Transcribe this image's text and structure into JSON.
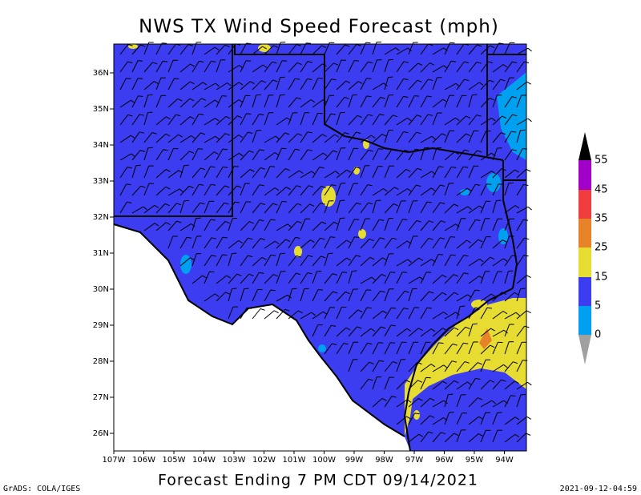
{
  "header": {
    "title": "NWS TX Wind Speed Forecast (mph)"
  },
  "map": {
    "lat_labels": [
      "26N",
      "27N",
      "28N",
      "29N",
      "30N",
      "31N",
      "32N",
      "33N",
      "34N",
      "35N",
      "36N"
    ],
    "lon_labels": [
      "107W",
      "106W",
      "105W",
      "104W",
      "103W",
      "102W",
      "101W",
      "100W",
      "99W",
      "98W",
      "97W",
      "96W",
      "95W",
      "94W"
    ]
  },
  "legend": {
    "labels": [
      "0",
      "5",
      "15",
      "25",
      "35",
      "45",
      "55"
    ]
  },
  "footer": {
    "caption": "Forecast Ending 7 PM CDT 09/14/2021",
    "credit": "GrADS: COLA/IGES",
    "timestamp": "2021-09-12-04:59"
  }
}
